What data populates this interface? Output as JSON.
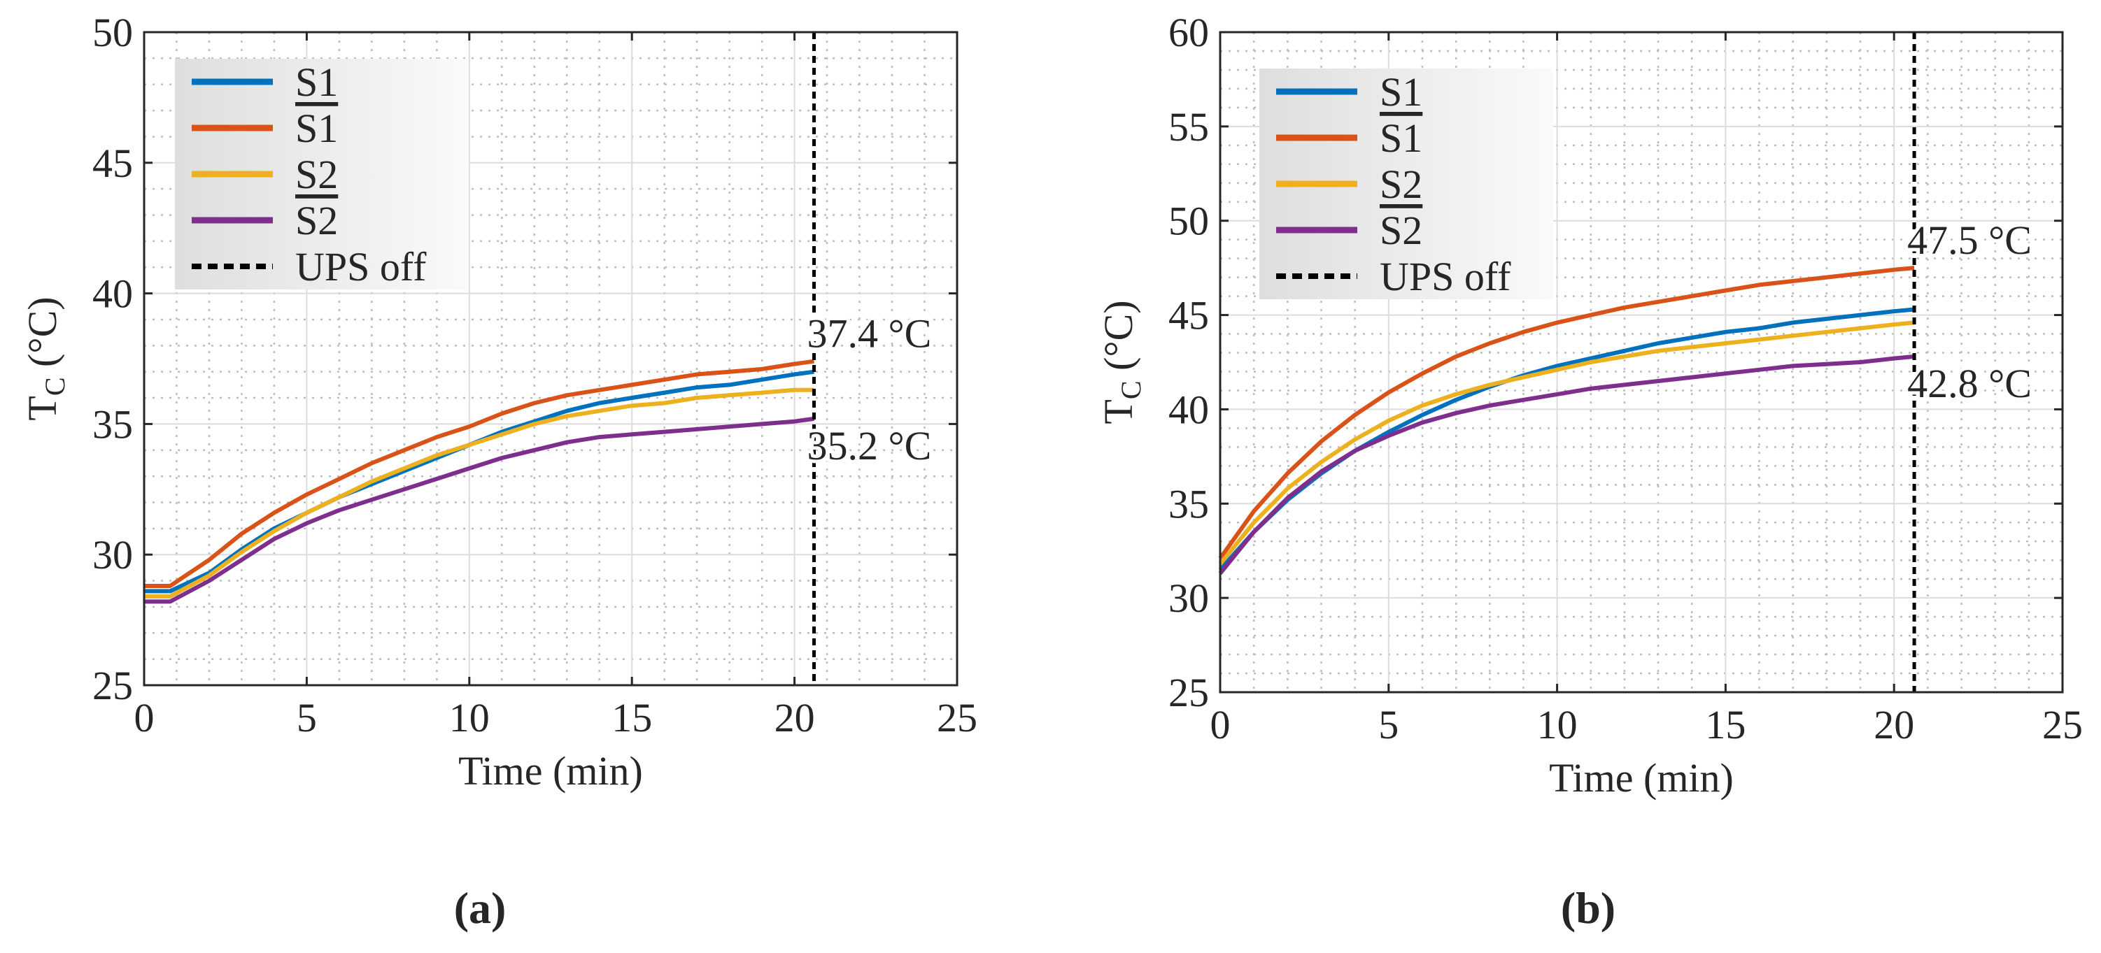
{
  "chart_data": [
    {
      "panel": "(a)",
      "type": "line",
      "xlabel": "Time (min)",
      "ylabel_main": "T",
      "ylabel_sub": "C",
      "ylabel_unit": "(°C)",
      "xlim": [
        0,
        25
      ],
      "ylim": [
        25,
        50
      ],
      "xticks": [
        0,
        5,
        10,
        15,
        20,
        25
      ],
      "yticks": [
        25,
        30,
        35,
        40,
        45,
        50
      ],
      "grid": "major and minor",
      "legend_position": "top-left",
      "vline": {
        "x": 20.6,
        "label": "UPS off"
      },
      "annotations": [
        {
          "text": "37.4 °C",
          "x": 20.6,
          "y": 37.4
        },
        {
          "text": "35.2 °C",
          "x": 20.6,
          "y": 35.2
        }
      ],
      "series": [
        {
          "name": "S1",
          "overline": false,
          "color": "#0072BD",
          "x": [
            0,
            0.8,
            2,
            3,
            4,
            5,
            6,
            7,
            8,
            9,
            10,
            11,
            12,
            13,
            14,
            15,
            16,
            17,
            18,
            19,
            20,
            20.6
          ],
          "values": [
            28.6,
            28.6,
            29.3,
            30.2,
            31.0,
            31.6,
            32.2,
            32.7,
            33.2,
            33.7,
            34.2,
            34.7,
            35.1,
            35.5,
            35.8,
            36.0,
            36.2,
            36.4,
            36.5,
            36.7,
            36.9,
            37.0
          ]
        },
        {
          "name": "S1",
          "overline": true,
          "color": "#D95319",
          "x": [
            0,
            0.8,
            2,
            3,
            4,
            5,
            6,
            7,
            8,
            9,
            10,
            11,
            12,
            13,
            14,
            15,
            16,
            17,
            18,
            19,
            20,
            20.6
          ],
          "values": [
            28.8,
            28.8,
            29.8,
            30.8,
            31.6,
            32.3,
            32.9,
            33.5,
            34.0,
            34.5,
            34.9,
            35.4,
            35.8,
            36.1,
            36.3,
            36.5,
            36.7,
            36.9,
            37.0,
            37.1,
            37.3,
            37.4
          ]
        },
        {
          "name": "S2",
          "overline": false,
          "color": "#EDB120",
          "x": [
            0,
            0.8,
            2,
            3,
            4,
            5,
            6,
            7,
            8,
            9,
            10,
            11,
            12,
            13,
            14,
            15,
            16,
            17,
            18,
            19,
            20,
            20.6
          ],
          "values": [
            28.4,
            28.4,
            29.2,
            30.1,
            30.9,
            31.6,
            32.2,
            32.8,
            33.3,
            33.8,
            34.2,
            34.6,
            35.0,
            35.3,
            35.5,
            35.7,
            35.8,
            36.0,
            36.1,
            36.2,
            36.3,
            36.3
          ]
        },
        {
          "name": "S2",
          "overline": true,
          "color": "#7E2F8E",
          "x": [
            0,
            0.8,
            2,
            3,
            4,
            5,
            6,
            7,
            8,
            9,
            10,
            11,
            12,
            13,
            14,
            15,
            16,
            17,
            18,
            19,
            20,
            20.6
          ],
          "values": [
            28.2,
            28.2,
            29.0,
            29.8,
            30.6,
            31.2,
            31.7,
            32.1,
            32.5,
            32.9,
            33.3,
            33.7,
            34.0,
            34.3,
            34.5,
            34.6,
            34.7,
            34.8,
            34.9,
            35.0,
            35.1,
            35.2
          ]
        }
      ]
    },
    {
      "panel": "(b)",
      "type": "line",
      "xlabel": "Time (min)",
      "ylabel_main": "T",
      "ylabel_sub": "C",
      "ylabel_unit": "(°C)",
      "xlim": [
        0,
        25
      ],
      "ylim": [
        25,
        60
      ],
      "xticks": [
        0,
        5,
        10,
        15,
        20,
        25
      ],
      "yticks": [
        25,
        30,
        35,
        40,
        45,
        50,
        55,
        60
      ],
      "grid": "major and minor",
      "legend_position": "top-left",
      "vline": {
        "x": 20.6,
        "label": "UPS off"
      },
      "annotations": [
        {
          "text": "47.5 °C",
          "x": 20.6,
          "y": 47.5
        },
        {
          "text": "42.8 °C",
          "x": 20.6,
          "y": 42.8
        }
      ],
      "series": [
        {
          "name": "S1",
          "overline": false,
          "color": "#0072BD",
          "x": [
            0,
            1,
            2,
            3,
            4,
            5,
            6,
            7,
            8,
            9,
            10,
            11,
            12,
            13,
            14,
            15,
            16,
            17,
            18,
            19,
            20,
            20.6
          ],
          "values": [
            31.5,
            33.5,
            35.2,
            36.6,
            37.8,
            38.8,
            39.7,
            40.5,
            41.2,
            41.8,
            42.3,
            42.7,
            43.1,
            43.5,
            43.8,
            44.1,
            44.3,
            44.6,
            44.8,
            45.0,
            45.2,
            45.3
          ]
        },
        {
          "name": "S1",
          "overline": true,
          "color": "#D95319",
          "x": [
            0,
            1,
            2,
            3,
            4,
            5,
            6,
            7,
            8,
            9,
            10,
            11,
            12,
            13,
            14,
            15,
            16,
            17,
            18,
            19,
            20,
            20.6
          ],
          "values": [
            32.1,
            34.6,
            36.6,
            38.3,
            39.7,
            40.9,
            41.9,
            42.8,
            43.5,
            44.1,
            44.6,
            45.0,
            45.4,
            45.7,
            46.0,
            46.3,
            46.6,
            46.8,
            47.0,
            47.2,
            47.4,
            47.5
          ]
        },
        {
          "name": "S2",
          "overline": false,
          "color": "#EDB120",
          "x": [
            0,
            1,
            2,
            3,
            4,
            5,
            6,
            7,
            8,
            9,
            10,
            11,
            12,
            13,
            14,
            15,
            16,
            17,
            18,
            19,
            20,
            20.6
          ],
          "values": [
            31.8,
            34.0,
            35.8,
            37.2,
            38.4,
            39.4,
            40.2,
            40.8,
            41.3,
            41.7,
            42.1,
            42.5,
            42.8,
            43.1,
            43.3,
            43.5,
            43.7,
            43.9,
            44.1,
            44.3,
            44.5,
            44.6
          ]
        },
        {
          "name": "S2",
          "overline": true,
          "color": "#7E2F8E",
          "x": [
            0,
            1,
            2,
            3,
            4,
            5,
            6,
            7,
            8,
            9,
            10,
            11,
            12,
            13,
            14,
            15,
            16,
            17,
            18,
            19,
            20,
            20.6
          ],
          "values": [
            31.3,
            33.5,
            35.3,
            36.7,
            37.8,
            38.6,
            39.3,
            39.8,
            40.2,
            40.5,
            40.8,
            41.1,
            41.3,
            41.5,
            41.7,
            41.9,
            42.1,
            42.3,
            42.4,
            42.5,
            42.7,
            42.8
          ]
        }
      ]
    }
  ]
}
